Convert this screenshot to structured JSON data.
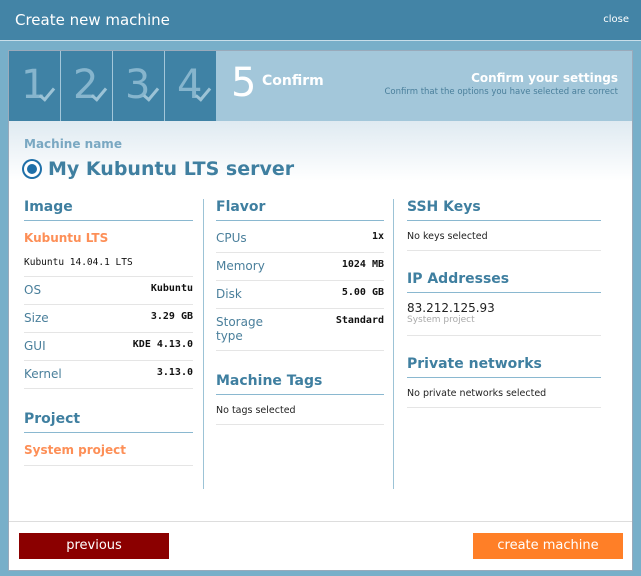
{
  "window": {
    "title": "Create new machine",
    "close_label": "close"
  },
  "steps": {
    "items": [
      {
        "number": "1"
      },
      {
        "number": "2"
      },
      {
        "number": "3"
      },
      {
        "number": "4"
      }
    ],
    "current_number": "5",
    "current_label": "Confirm",
    "heading": "Confirm your settings",
    "subheading": "Confirm that the options you have selected are correct"
  },
  "machine": {
    "label": "Machine name",
    "name": "My Kubuntu LTS server",
    "icon": "ubuntu-logo-icon"
  },
  "image": {
    "heading": "Image",
    "name": "Kubuntu LTS",
    "version": "Kubuntu 14.04.1 LTS",
    "rows": [
      {
        "k": "OS",
        "v": "Kubuntu"
      },
      {
        "k": "Size",
        "v": "3.29 GB"
      },
      {
        "k": "GUI",
        "v": "KDE 4.13.0"
      },
      {
        "k": "Kernel",
        "v": "3.13.0"
      }
    ]
  },
  "project": {
    "heading": "Project",
    "name": "System project"
  },
  "flavor": {
    "heading": "Flavor",
    "rows": [
      {
        "k": "CPUs",
        "v": "1x"
      },
      {
        "k": "Memory",
        "v": "1024 MB"
      },
      {
        "k": "Disk",
        "v": "5.00 GB"
      },
      {
        "k": "Storage type",
        "v": "Standard"
      }
    ]
  },
  "tags": {
    "heading": "Machine Tags",
    "empty": "No tags selected"
  },
  "ssh": {
    "heading": "SSH Keys",
    "empty": "No keys selected"
  },
  "ip": {
    "heading": "IP Addresses",
    "address": "83.212.125.93",
    "project": "System project"
  },
  "networks": {
    "heading": "Private networks",
    "empty": "No private networks selected"
  },
  "footer": {
    "previous": "previous",
    "create": "create machine"
  },
  "colors": {
    "header": "#4384a6",
    "accent": "#fd8f57",
    "previous": "#8b0000",
    "create": "#ff7f27"
  }
}
